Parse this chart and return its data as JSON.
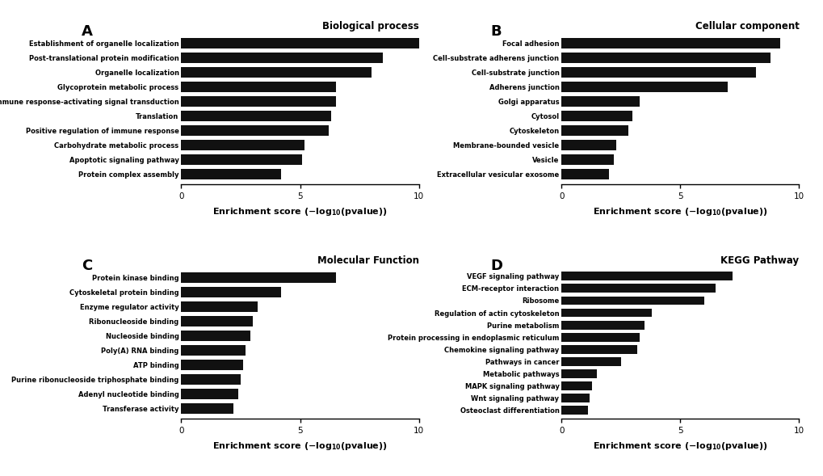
{
  "panel_A": {
    "title": "Biological process",
    "categories": [
      "Establishment of organelle localization",
      "Post-translational protein modification",
      "Organelle localization",
      "Glycoprotein metabolic process",
      "Immune response-activating signal transduction",
      "Translation",
      "Positive regulation of immune response",
      "Carbohydrate metabolic process",
      "Apoptotic signaling pathway",
      "Protein complex assembly"
    ],
    "values": [
      10.0,
      8.5,
      8.0,
      6.5,
      6.5,
      6.3,
      6.2,
      5.2,
      5.1,
      4.2
    ]
  },
  "panel_B": {
    "title": "Cellular component",
    "categories": [
      "Focal adhesion",
      "Cell-substrate adherens junction",
      "Cell-substrate junction",
      "Adherens junction",
      "Golgi apparatus",
      "Cytosol",
      "Cytoskeleton",
      "Membrane-bounded vesicle",
      "Vesicle",
      "Extracellular vesicular exosome"
    ],
    "values": [
      9.2,
      8.8,
      8.2,
      7.0,
      3.3,
      3.0,
      2.8,
      2.3,
      2.2,
      2.0
    ]
  },
  "panel_C": {
    "title": "Molecular Function",
    "categories": [
      "Protein kinase binding",
      "Cytoskeletal protein binding",
      "Enzyme regulator activity",
      "Ribonucleoside binding",
      "Nucleoside binding",
      "Poly(A) RNA binding",
      "ATP binding",
      "Purine ribonucleoside triphosphate binding",
      "Adenyl nucleotide binding",
      "Transferase activity"
    ],
    "values": [
      6.5,
      4.2,
      3.2,
      3.0,
      2.9,
      2.7,
      2.6,
      2.5,
      2.4,
      2.2
    ]
  },
  "panel_D": {
    "title": "KEGG Pathway",
    "categories": [
      "VEGF signaling pathway",
      "ECM-receptor interaction",
      "Ribosome",
      "Regulation of actin cytoskeleton",
      "Purine metabolism",
      "Protein processing in endoplasmic reticulum",
      "Chemokine signaling pathway",
      "Pathways in cancer",
      "Metabolic pathways",
      "MAPK signaling pathway",
      "Wnt signaling pathway",
      "Osteoclast differentiation"
    ],
    "values": [
      7.2,
      6.5,
      6.0,
      3.8,
      3.5,
      3.3,
      3.2,
      2.5,
      1.5,
      1.3,
      1.2,
      1.1
    ]
  },
  "bar_color": "#111111",
  "xlim": [
    0,
    10
  ],
  "background_color": "#ffffff"
}
